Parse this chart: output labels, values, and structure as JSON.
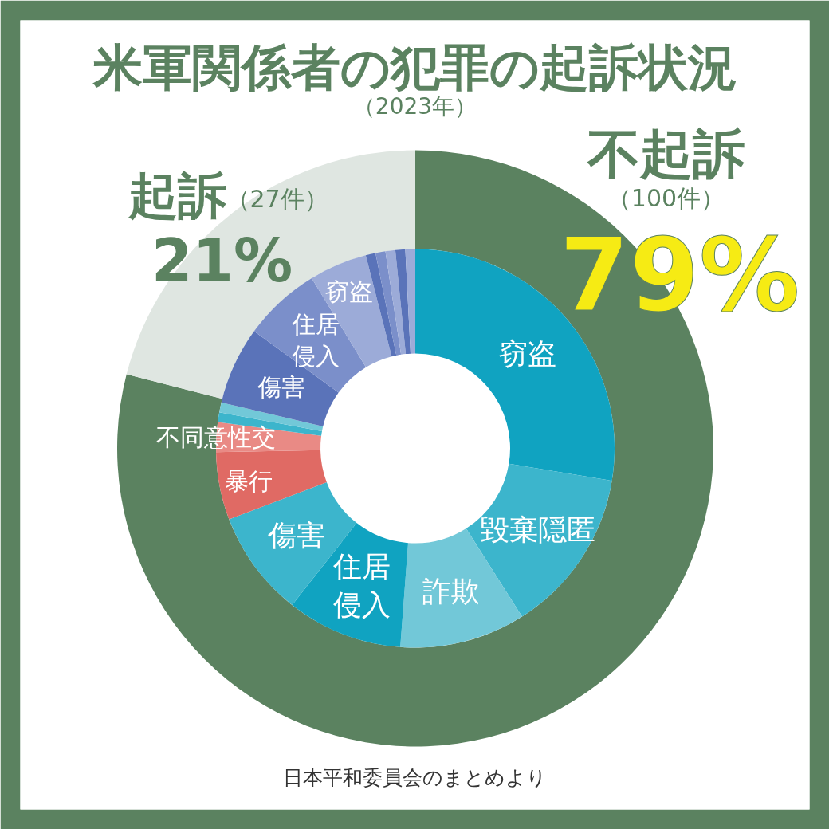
{
  "chart_data": [
    {
      "type": "donut",
      "title": "米軍関係者の犯罪の起訴状況",
      "subtitle": "（2023年）",
      "categories": [
        "不起訴",
        "起訴"
      ],
      "values": [
        79,
        21
      ],
      "colors": [
        "#5b8260",
        "#dfe6e1"
      ],
      "value_labels": [
        "79%",
        "21%"
      ],
      "annotations": [
        "（100件）",
        "（27件）",
        "日本平和委員会のまとめより"
      ]
    },
    {
      "type": "donut",
      "categories": [
        "窃盗",
        "毀棄隠匿",
        "詐欺",
        "住居侵入",
        "傷害",
        "暴行",
        "不同意性交",
        null,
        null,
        "傷害",
        "住居侵入",
        "窃盗",
        null,
        null,
        null,
        null,
        null
      ],
      "values": [
        27.6,
        13.4,
        10.2,
        9.4,
        8.6,
        5.5,
        2.4,
        0.8,
        0.8,
        6.3,
        6.3,
        4.7,
        0.8,
        0.8,
        0.8,
        0.8,
        0.8
      ],
      "colors": [
        "#10a3c1",
        "#3cb5cc",
        "#72c8d8",
        "#10a3c1",
        "#3cb5cc",
        "#e06a64",
        "#e98a85",
        "#3cb5cc",
        "#72c8d8",
        "#5a73b9",
        "#7b8fca",
        "#9cabd8",
        "#5a73b9",
        "#7b8fca",
        "#9cabd8",
        "#5a73b9",
        "#9cabd8"
      ]
    }
  ]
}
